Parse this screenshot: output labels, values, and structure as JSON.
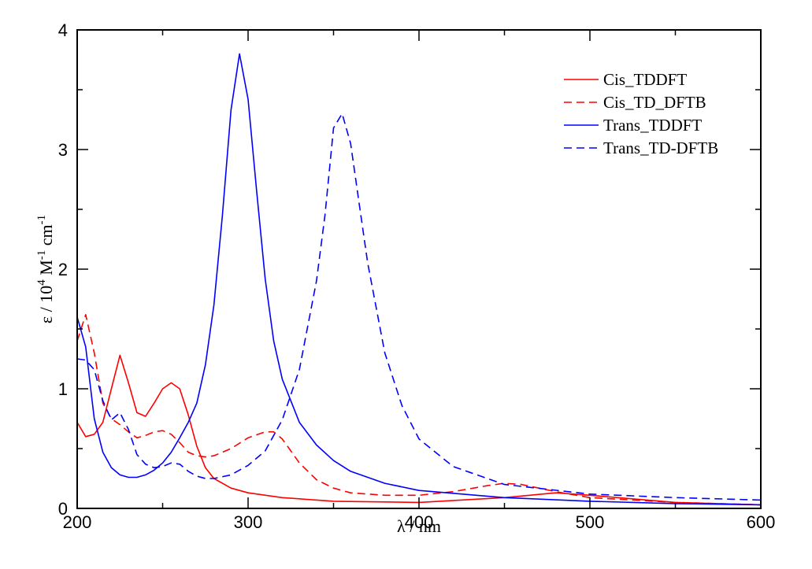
{
  "chart_data": {
    "type": "line",
    "title": "",
    "xlabel": {
      "parts": [
        "λ / nm"
      ]
    },
    "ylabel": {
      "parts": [
        "ε / 10",
        "4",
        " M",
        "-1",
        " cm",
        "-1"
      ]
    },
    "xlim": [
      200,
      600
    ],
    "ylim": [
      0,
      4
    ],
    "xticks": [
      200,
      300,
      400,
      500,
      600
    ],
    "yticks": [
      0,
      1,
      2,
      3,
      4
    ],
    "xtick_labels": [
      "200",
      "300",
      "400",
      "500",
      "600"
    ],
    "ytick_labels": [
      "0",
      "1",
      "2",
      "3",
      "4"
    ],
    "grid": false,
    "legend_position": "top-right",
    "series": [
      {
        "name": "Cis_TDDFT",
        "color": "#ff0000",
        "dash": "solid",
        "x": [
          200,
          205,
          210,
          215,
          220,
          225,
          230,
          235,
          240,
          245,
          250,
          255,
          260,
          265,
          270,
          275,
          280,
          290,
          300,
          320,
          350,
          400,
          450,
          480,
          500,
          550,
          600
        ],
        "y": [
          0.72,
          0.6,
          0.62,
          0.72,
          1.0,
          1.28,
          1.05,
          0.8,
          0.77,
          0.88,
          1.0,
          1.05,
          1.0,
          0.78,
          0.52,
          0.34,
          0.25,
          0.17,
          0.13,
          0.09,
          0.06,
          0.05,
          0.09,
          0.13,
          0.11,
          0.05,
          0.03
        ]
      },
      {
        "name": "Cis_TD_DFTB",
        "color": "#ff0000",
        "dash": "dashed",
        "x": [
          200,
          205,
          210,
          215,
          220,
          225,
          230,
          235,
          240,
          245,
          250,
          255,
          260,
          265,
          270,
          275,
          280,
          290,
          300,
          310,
          315,
          320,
          325,
          330,
          340,
          350,
          360,
          380,
          400,
          420,
          440,
          450,
          460,
          480,
          500,
          550,
          600
        ],
        "y": [
          1.4,
          1.62,
          1.3,
          0.88,
          0.75,
          0.7,
          0.64,
          0.59,
          0.61,
          0.64,
          0.65,
          0.62,
          0.55,
          0.47,
          0.44,
          0.43,
          0.44,
          0.5,
          0.59,
          0.64,
          0.64,
          0.58,
          0.48,
          0.38,
          0.24,
          0.17,
          0.13,
          0.11,
          0.11,
          0.14,
          0.19,
          0.21,
          0.2,
          0.14,
          0.09,
          0.05,
          0.03
        ]
      },
      {
        "name": "Trans_TDDFT",
        "color": "#0000ff",
        "dash": "solid",
        "x": [
          200,
          205,
          210,
          215,
          220,
          225,
          230,
          235,
          240,
          245,
          250,
          255,
          260,
          265,
          270,
          275,
          280,
          285,
          290,
          295,
          300,
          305,
          310,
          315,
          320,
          330,
          340,
          350,
          360,
          380,
          400,
          450,
          500,
          550,
          600
        ],
        "y": [
          1.6,
          1.35,
          0.75,
          0.47,
          0.34,
          0.28,
          0.26,
          0.26,
          0.28,
          0.32,
          0.38,
          0.47,
          0.59,
          0.72,
          0.88,
          1.2,
          1.7,
          2.45,
          3.33,
          3.8,
          3.42,
          2.65,
          1.92,
          1.4,
          1.08,
          0.72,
          0.53,
          0.4,
          0.31,
          0.21,
          0.15,
          0.09,
          0.06,
          0.04,
          0.03
        ]
      },
      {
        "name": "Trans_TD-DFTB",
        "color": "#0000ff",
        "dash": "dashed",
        "x": [
          200,
          205,
          210,
          215,
          220,
          225,
          230,
          235,
          240,
          245,
          250,
          255,
          260,
          265,
          270,
          275,
          280,
          290,
          300,
          310,
          320,
          330,
          340,
          345,
          350,
          355,
          360,
          365,
          370,
          380,
          390,
          400,
          420,
          450,
          500,
          550,
          600
        ],
        "y": [
          1.25,
          1.24,
          1.16,
          0.9,
          0.74,
          0.8,
          0.66,
          0.45,
          0.37,
          0.34,
          0.35,
          0.38,
          0.37,
          0.31,
          0.27,
          0.25,
          0.25,
          0.28,
          0.36,
          0.48,
          0.74,
          1.16,
          1.9,
          2.45,
          3.18,
          3.3,
          3.05,
          2.55,
          2.05,
          1.3,
          0.86,
          0.58,
          0.35,
          0.2,
          0.12,
          0.09,
          0.07
        ]
      }
    ]
  }
}
